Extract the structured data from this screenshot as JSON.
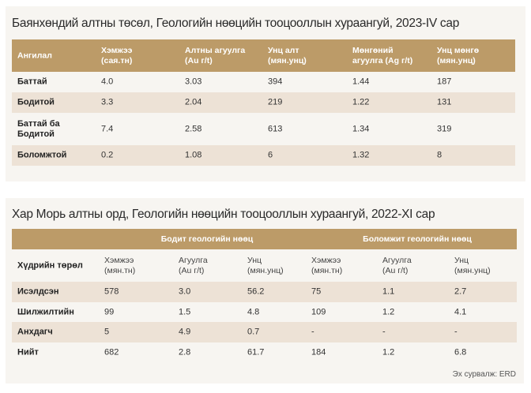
{
  "table1": {
    "title": "Баянхөндий алтны төсөл, Геологийн нөөцийн тооцооллын хураангуй, 2023-IV сар",
    "headers": [
      [
        "Ангилал",
        ""
      ],
      [
        "Хэмжээ",
        "(сая.тн)"
      ],
      [
        "Алтны агуулга",
        "(Au г/t)"
      ],
      [
        "Унц алт",
        "(мян.унц)"
      ],
      [
        "Мөнгөний",
        "агуулга  (Ag г/t)"
      ],
      [
        "Унц мөнгө",
        "(мян.унц)"
      ]
    ],
    "rows": [
      {
        "category": "Баттай",
        "category2": "",
        "values": [
          "4.0",
          "3.03",
          "394",
          "1.44",
          "187"
        ]
      },
      {
        "category": "Бодитой",
        "category2": "",
        "values": [
          "3.3",
          "2.04",
          "219",
          "1.22",
          "131"
        ]
      },
      {
        "category": "Баттай ба",
        "category2": "Бодитой",
        "values": [
          "7.4",
          "2.58",
          "613",
          "1.34",
          "319"
        ]
      },
      {
        "category": "Боломжтой",
        "category2": "",
        "values": [
          "0.2",
          "1.08",
          "6",
          "1.32",
          "8"
        ]
      }
    ]
  },
  "table2": {
    "title": "Хар Морь алтны орд, Геологийн нөөцийн тооцооллын хураангуй, 2022-XI сар",
    "groups": [
      "Бодит геологийн нөөц",
      "Боломжит геологийн нөөц"
    ],
    "first_header": "Хүдрийн төрөл",
    "subheaders": [
      [
        "Хэмжээ",
        "(мян.тн)"
      ],
      [
        "Агуулга",
        "(Au г/t)"
      ],
      [
        "Унц",
        "(мян.унц)"
      ],
      [
        "Хэмжээ",
        "(мян.тн)"
      ],
      [
        "Агуулга",
        "(Au г/t)"
      ],
      [
        "Унц",
        "(мян.унц)"
      ]
    ],
    "rows": [
      {
        "type": "Исэлдсэн",
        "values": [
          "578",
          "3.0",
          "56.2",
          "75",
          "1.1",
          "2.7"
        ]
      },
      {
        "type": "Шилжилтийн",
        "values": [
          "99",
          "1.5",
          "4.8",
          "109",
          "1.2",
          "4.1"
        ]
      },
      {
        "type": "Анхдагч",
        "values": [
          "5",
          "4.9",
          "0.7",
          "-",
          "-",
          "-"
        ]
      },
      {
        "type": "Нийт",
        "values": [
          "682",
          "2.8",
          "61.7",
          "184",
          "1.2",
          "6.8"
        ]
      }
    ],
    "source": "Эх сурвалж: ERD"
  },
  "colors": {
    "header_bg": "#bc9b68",
    "alt_row_bg": "#ede2d6",
    "panel_bg": "#f7f5f1"
  }
}
